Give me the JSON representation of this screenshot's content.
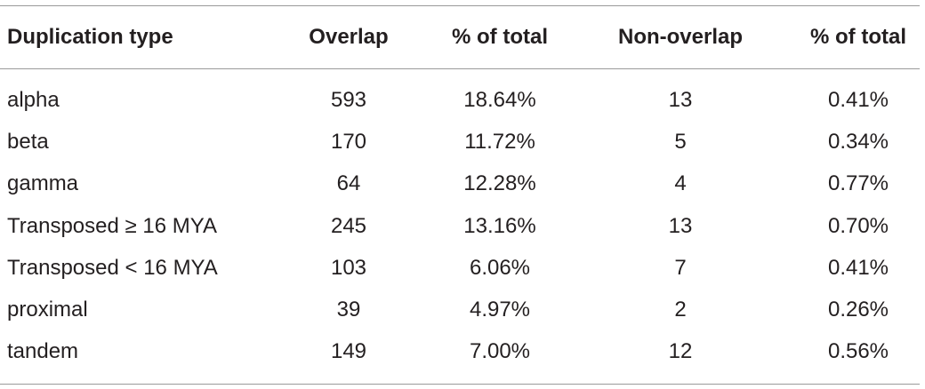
{
  "table": {
    "header": [
      "Duplication type",
      "Overlap",
      "% of total",
      "Non-overlap",
      "% of total"
    ],
    "rows": [
      [
        "alpha",
        "593",
        "18.64%",
        "13",
        "0.41%"
      ],
      [
        "beta",
        "170",
        "11.72%",
        "5",
        "0.34%"
      ],
      [
        "gamma",
        "64",
        "12.28%",
        "4",
        "0.77%"
      ],
      [
        "Transposed ≥ 16 MYA",
        "245",
        "13.16%",
        "13",
        "0.70%"
      ],
      [
        "Transposed < 16 MYA",
        "103",
        "6.06%",
        "7",
        "0.41%"
      ],
      [
        "proximal",
        "39",
        "4.97%",
        "2",
        "0.26%"
      ],
      [
        "tandem",
        "149",
        "7.00%",
        "12",
        "0.56%"
      ]
    ]
  }
}
